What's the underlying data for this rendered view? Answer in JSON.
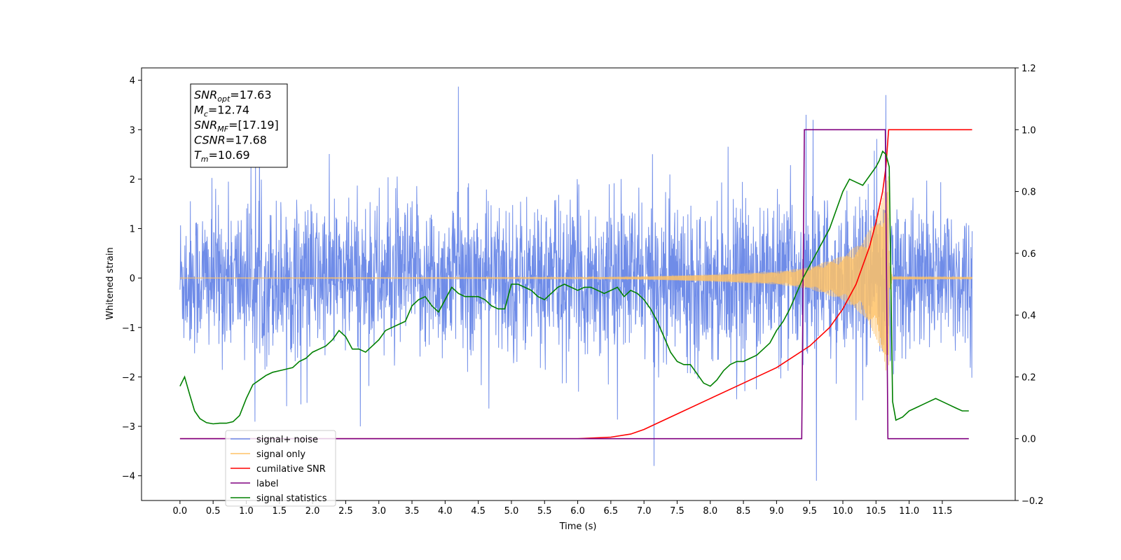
{
  "chart_data": {
    "type": "line",
    "xlabel": "Time (s)",
    "ylabel": "Whitened strain",
    "xlim": [
      -0.58,
      12.6
    ],
    "ylim": [
      -4.5,
      4.25
    ],
    "y2lim": [
      -0.2,
      1.2
    ],
    "x_ticks": [
      "0.0",
      "0.5",
      "1.0",
      "1.5",
      "2.0",
      "2.5",
      "3.0",
      "3.5",
      "4.0",
      "4.5",
      "5.0",
      "5.5",
      "6.0",
      "6.5",
      "7.0",
      "7.5",
      "8.0",
      "8.5",
      "9.0",
      "9.5",
      "10.0",
      "10.5",
      "11.0",
      "11.5"
    ],
    "y_ticks": [
      "4",
      "3",
      "2",
      "1",
      "0",
      "−1",
      "−2",
      "−3",
      "−4"
    ],
    "y2_ticks": [
      "1.2",
      "1.0",
      "0.8",
      "0.6",
      "0.4",
      "0.2",
      "0.0",
      "−0.2"
    ],
    "annotation": {
      "lines": [
        {
          "name": "SNR",
          "sub": "opt",
          "value": "=17.63"
        },
        {
          "name": "M",
          "sub": "c",
          "value": "=12.74"
        },
        {
          "name": "SNR",
          "sub": "MF",
          "value": "=[17.19]"
        },
        {
          "name": "CSNR",
          "sub": "",
          "value": "=17.68"
        },
        {
          "name": "T",
          "sub": "m",
          "value": "=10.69"
        }
      ]
    },
    "legend": {
      "placement": "lower-left",
      "entries": [
        {
          "label": "signal+ noise",
          "color": "#6f8ce8"
        },
        {
          "label": "signal only",
          "color": "#ffc266"
        },
        {
          "label": "cumilative SNR",
          "color": "#ff0000"
        },
        {
          "label": "label",
          "color": "#800080"
        },
        {
          "label": "signal statistics",
          "color": "#008000"
        }
      ]
    },
    "series": [
      {
        "name": "signal+ noise",
        "axis": "left",
        "color": "#6f8ce8",
        "t_start": 0.0,
        "t_end": 11.95,
        "noise_std": 0.9,
        "spikes": [
          [
            4.2,
            3.87
          ],
          [
            10.65,
            3.7
          ],
          [
            9.6,
            -4.1
          ],
          [
            7.15,
            -3.8
          ],
          [
            9.55,
            3.2
          ]
        ]
      },
      {
        "name": "signal only",
        "axis": "left",
        "color": "#ffc266",
        "t_start": 0.0,
        "t_end": 11.95,
        "merger_time": 10.69,
        "envelope": [
          [
            0.0,
            0.003
          ],
          [
            6.0,
            0.01
          ],
          [
            7.0,
            0.03
          ],
          [
            8.0,
            0.07
          ],
          [
            9.0,
            0.13
          ],
          [
            9.5,
            0.22
          ],
          [
            10.0,
            0.45
          ],
          [
            10.3,
            0.75
          ],
          [
            10.5,
            1.2
          ],
          [
            10.6,
            1.6
          ],
          [
            10.69,
            2.2
          ],
          [
            10.7,
            0.3
          ],
          [
            10.75,
            0.03
          ],
          [
            11.95,
            0.02
          ]
        ]
      },
      {
        "name": "cumilative SNR",
        "axis": "right",
        "color": "#ff0000",
        "x": [
          0.0,
          6.0,
          6.5,
          6.8,
          7.0,
          7.2,
          7.5,
          8.0,
          8.5,
          9.0,
          9.5,
          9.8,
          10.0,
          10.2,
          10.4,
          10.5,
          10.6,
          10.65,
          10.69,
          11.95
        ],
        "y": [
          0.0,
          0.0,
          0.005,
          0.015,
          0.03,
          0.05,
          0.08,
          0.13,
          0.18,
          0.23,
          0.3,
          0.36,
          0.42,
          0.5,
          0.62,
          0.7,
          0.8,
          0.88,
          1.0,
          1.0
        ]
      },
      {
        "name": "label",
        "axis": "right",
        "color": "#800080",
        "x": [
          0.0,
          9.38,
          9.42,
          10.64,
          10.68,
          11.9
        ],
        "y": [
          0.0,
          0.0,
          1.0,
          1.0,
          0.0,
          0.0
        ]
      },
      {
        "name": "signal statistics",
        "axis": "right",
        "color": "#008000",
        "x": [
          0.0,
          0.07,
          0.15,
          0.22,
          0.3,
          0.4,
          0.5,
          0.6,
          0.7,
          0.8,
          0.9,
          1.0,
          1.1,
          1.2,
          1.3,
          1.4,
          1.5,
          1.6,
          1.7,
          1.8,
          1.9,
          2.0,
          2.1,
          2.2,
          2.3,
          2.4,
          2.5,
          2.6,
          2.7,
          2.8,
          2.9,
          3.0,
          3.1,
          3.2,
          3.3,
          3.4,
          3.5,
          3.6,
          3.7,
          3.8,
          3.9,
          4.0,
          4.1,
          4.2,
          4.3,
          4.4,
          4.5,
          4.6,
          4.7,
          4.8,
          4.9,
          5.0,
          5.1,
          5.2,
          5.3,
          5.4,
          5.5,
          5.6,
          5.7,
          5.8,
          5.9,
          6.0,
          6.1,
          6.2,
          6.3,
          6.4,
          6.5,
          6.6,
          6.7,
          6.8,
          6.9,
          7.0,
          7.1,
          7.2,
          7.3,
          7.4,
          7.5,
          7.6,
          7.7,
          7.8,
          7.9,
          8.0,
          8.1,
          8.2,
          8.3,
          8.4,
          8.5,
          8.6,
          8.7,
          8.8,
          8.9,
          9.0,
          9.1,
          9.2,
          9.3,
          9.4,
          9.5,
          9.6,
          9.7,
          9.8,
          9.9,
          10.0,
          10.1,
          10.2,
          10.3,
          10.4,
          10.5,
          10.55,
          10.6,
          10.65,
          10.7,
          10.75,
          10.8,
          10.9,
          11.0,
          11.1,
          11.2,
          11.3,
          11.4,
          11.5,
          11.6,
          11.7,
          11.8,
          11.9
        ],
        "y": [
          0.17,
          0.2,
          0.14,
          0.09,
          0.065,
          0.052,
          0.048,
          0.05,
          0.05,
          0.055,
          0.075,
          0.13,
          0.175,
          0.19,
          0.205,
          0.215,
          0.22,
          0.225,
          0.23,
          0.25,
          0.26,
          0.28,
          0.29,
          0.3,
          0.32,
          0.35,
          0.33,
          0.29,
          0.29,
          0.28,
          0.3,
          0.32,
          0.35,
          0.36,
          0.37,
          0.38,
          0.43,
          0.45,
          0.46,
          0.43,
          0.41,
          0.45,
          0.49,
          0.47,
          0.46,
          0.46,
          0.46,
          0.45,
          0.43,
          0.42,
          0.42,
          0.5,
          0.5,
          0.49,
          0.48,
          0.46,
          0.45,
          0.47,
          0.49,
          0.5,
          0.49,
          0.48,
          0.49,
          0.49,
          0.48,
          0.47,
          0.48,
          0.49,
          0.46,
          0.48,
          0.47,
          0.45,
          0.42,
          0.38,
          0.33,
          0.28,
          0.25,
          0.24,
          0.24,
          0.21,
          0.18,
          0.17,
          0.19,
          0.22,
          0.24,
          0.25,
          0.25,
          0.26,
          0.27,
          0.29,
          0.31,
          0.35,
          0.38,
          0.42,
          0.47,
          0.52,
          0.56,
          0.6,
          0.64,
          0.68,
          0.74,
          0.8,
          0.84,
          0.83,
          0.82,
          0.85,
          0.88,
          0.9,
          0.93,
          0.92,
          0.88,
          0.12,
          0.06,
          0.07,
          0.09,
          0.1,
          0.11,
          0.12,
          0.13,
          0.12,
          0.11,
          0.1,
          0.09,
          0.09
        ]
      }
    ]
  }
}
